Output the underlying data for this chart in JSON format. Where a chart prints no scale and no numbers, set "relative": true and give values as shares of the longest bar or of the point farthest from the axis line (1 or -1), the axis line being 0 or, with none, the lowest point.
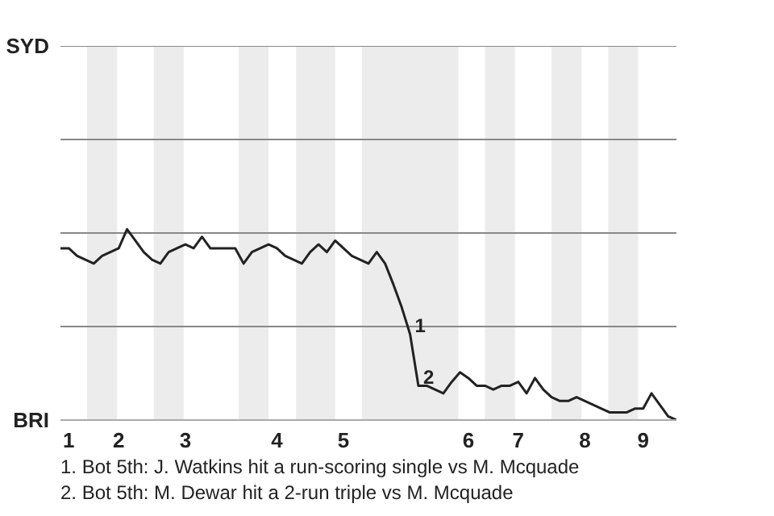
{
  "chart_data": {
    "type": "line",
    "relative": true,
    "categories": [
      null,
      "1",
      null,
      null,
      null,
      null,
      null,
      "2",
      null,
      null,
      null,
      null,
      null,
      null,
      null,
      "3",
      null,
      null,
      null,
      null,
      null,
      null,
      null,
      null,
      null,
      null,
      "4",
      null,
      null,
      null,
      null,
      null,
      null,
      null,
      "5",
      null,
      null,
      null,
      null,
      null,
      null,
      null,
      null,
      null,
      null,
      null,
      null,
      null,
      null,
      "6",
      null,
      null,
      null,
      null,
      null,
      "7",
      null,
      null,
      null,
      null,
      null,
      null,
      null,
      "8",
      null,
      null,
      null,
      null,
      null,
      null,
      "9",
      null,
      null,
      null,
      null
    ],
    "series": [
      {
        "color": "#222222",
        "values": [
          0.9,
          0.9,
          0.86,
          0.84,
          0.82,
          0.86,
          0.88,
          0.9,
          1,
          0.94,
          0.88,
          0.84,
          0.82,
          0.88,
          0.9,
          0.92,
          0.9,
          0.96,
          0.9,
          0.9,
          0.9,
          0.9,
          0.82,
          0.88,
          0.9,
          0.92,
          0.9,
          0.86,
          0.84,
          0.82,
          0.88,
          0.92,
          0.88,
          0.94,
          0.9,
          0.86,
          0.84,
          0.82,
          0.88,
          0.82,
          0.71,
          0.59,
          0.45,
          0.18,
          0.18,
          0.16,
          0.14,
          0.2,
          0.25,
          0.22,
          0.18,
          0.18,
          0.16,
          0.18,
          0.18,
          0.2,
          0.14,
          0.22,
          0.16,
          0.12,
          0.1,
          0.1,
          0.12,
          0.1,
          0.08,
          0.06,
          0.04,
          0.04,
          0.04,
          0.06,
          0.06,
          0.14,
          0.08,
          0.02,
          0
        ]
      }
    ],
    "marker": "none",
    "line_style": "solid",
    "ref_lines": [
      {
        "axis": "y",
        "value": 0.49,
        "color": "#888888"
      },
      {
        "axis": "y",
        "value": 0.98,
        "color": "#888888"
      },
      {
        "axis": "y",
        "value": 1.47,
        "color": "#888888"
      },
      {
        "axis": "y",
        "value": 1.96,
        "color": "#888888"
      }
    ],
    "annotations": [
      "SYD",
      "BRI",
      {
        "text": "1",
        "y": 0.45
      },
      {
        "text": "2",
        "y": 0.18
      },
      "1. Bot 5th: J. Watkins hit a run-scoring single vs M. Mcquade",
      "2. Bot 5th: M. Dewar hit a 2-run triple vs M. Mcquade"
    ]
  }
}
